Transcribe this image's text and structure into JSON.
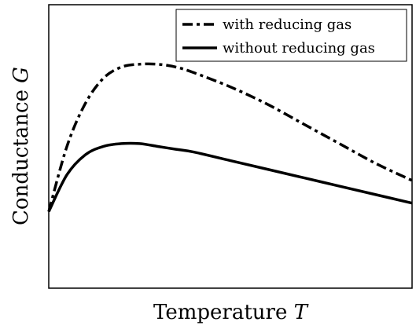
{
  "chart_data": {
    "type": "line",
    "title": "",
    "xlabel": "Temperature",
    "xlabel_var": "T",
    "ylabel": "Conductance",
    "ylabel_var": "G",
    "xlim": [
      0,
      1
    ],
    "ylim": [
      0,
      1
    ],
    "grid": false,
    "ticks": false,
    "legend_position": "top-right",
    "series": [
      {
        "name": "with reducing gas",
        "line_style": "dash-dot",
        "color": "#000000",
        "x": [
          0.0,
          0.05,
          0.1,
          0.15,
          0.2,
          0.25,
          0.3,
          0.35,
          0.4,
          0.5,
          0.6,
          0.7,
          0.8,
          0.9,
          1.0
        ],
        "y": [
          0.27,
          0.5,
          0.65,
          0.74,
          0.78,
          0.79,
          0.79,
          0.78,
          0.76,
          0.71,
          0.65,
          0.58,
          0.51,
          0.44,
          0.38
        ]
      },
      {
        "name": "without reducing gas",
        "line_style": "solid",
        "color": "#000000",
        "x": [
          0.0,
          0.05,
          0.1,
          0.15,
          0.2,
          0.25,
          0.3,
          0.35,
          0.4,
          0.5,
          0.6,
          0.7,
          0.8,
          0.9,
          1.0
        ],
        "y": [
          0.27,
          0.4,
          0.47,
          0.5,
          0.51,
          0.51,
          0.5,
          0.49,
          0.48,
          0.45,
          0.42,
          0.39,
          0.36,
          0.33,
          0.3
        ]
      }
    ]
  }
}
